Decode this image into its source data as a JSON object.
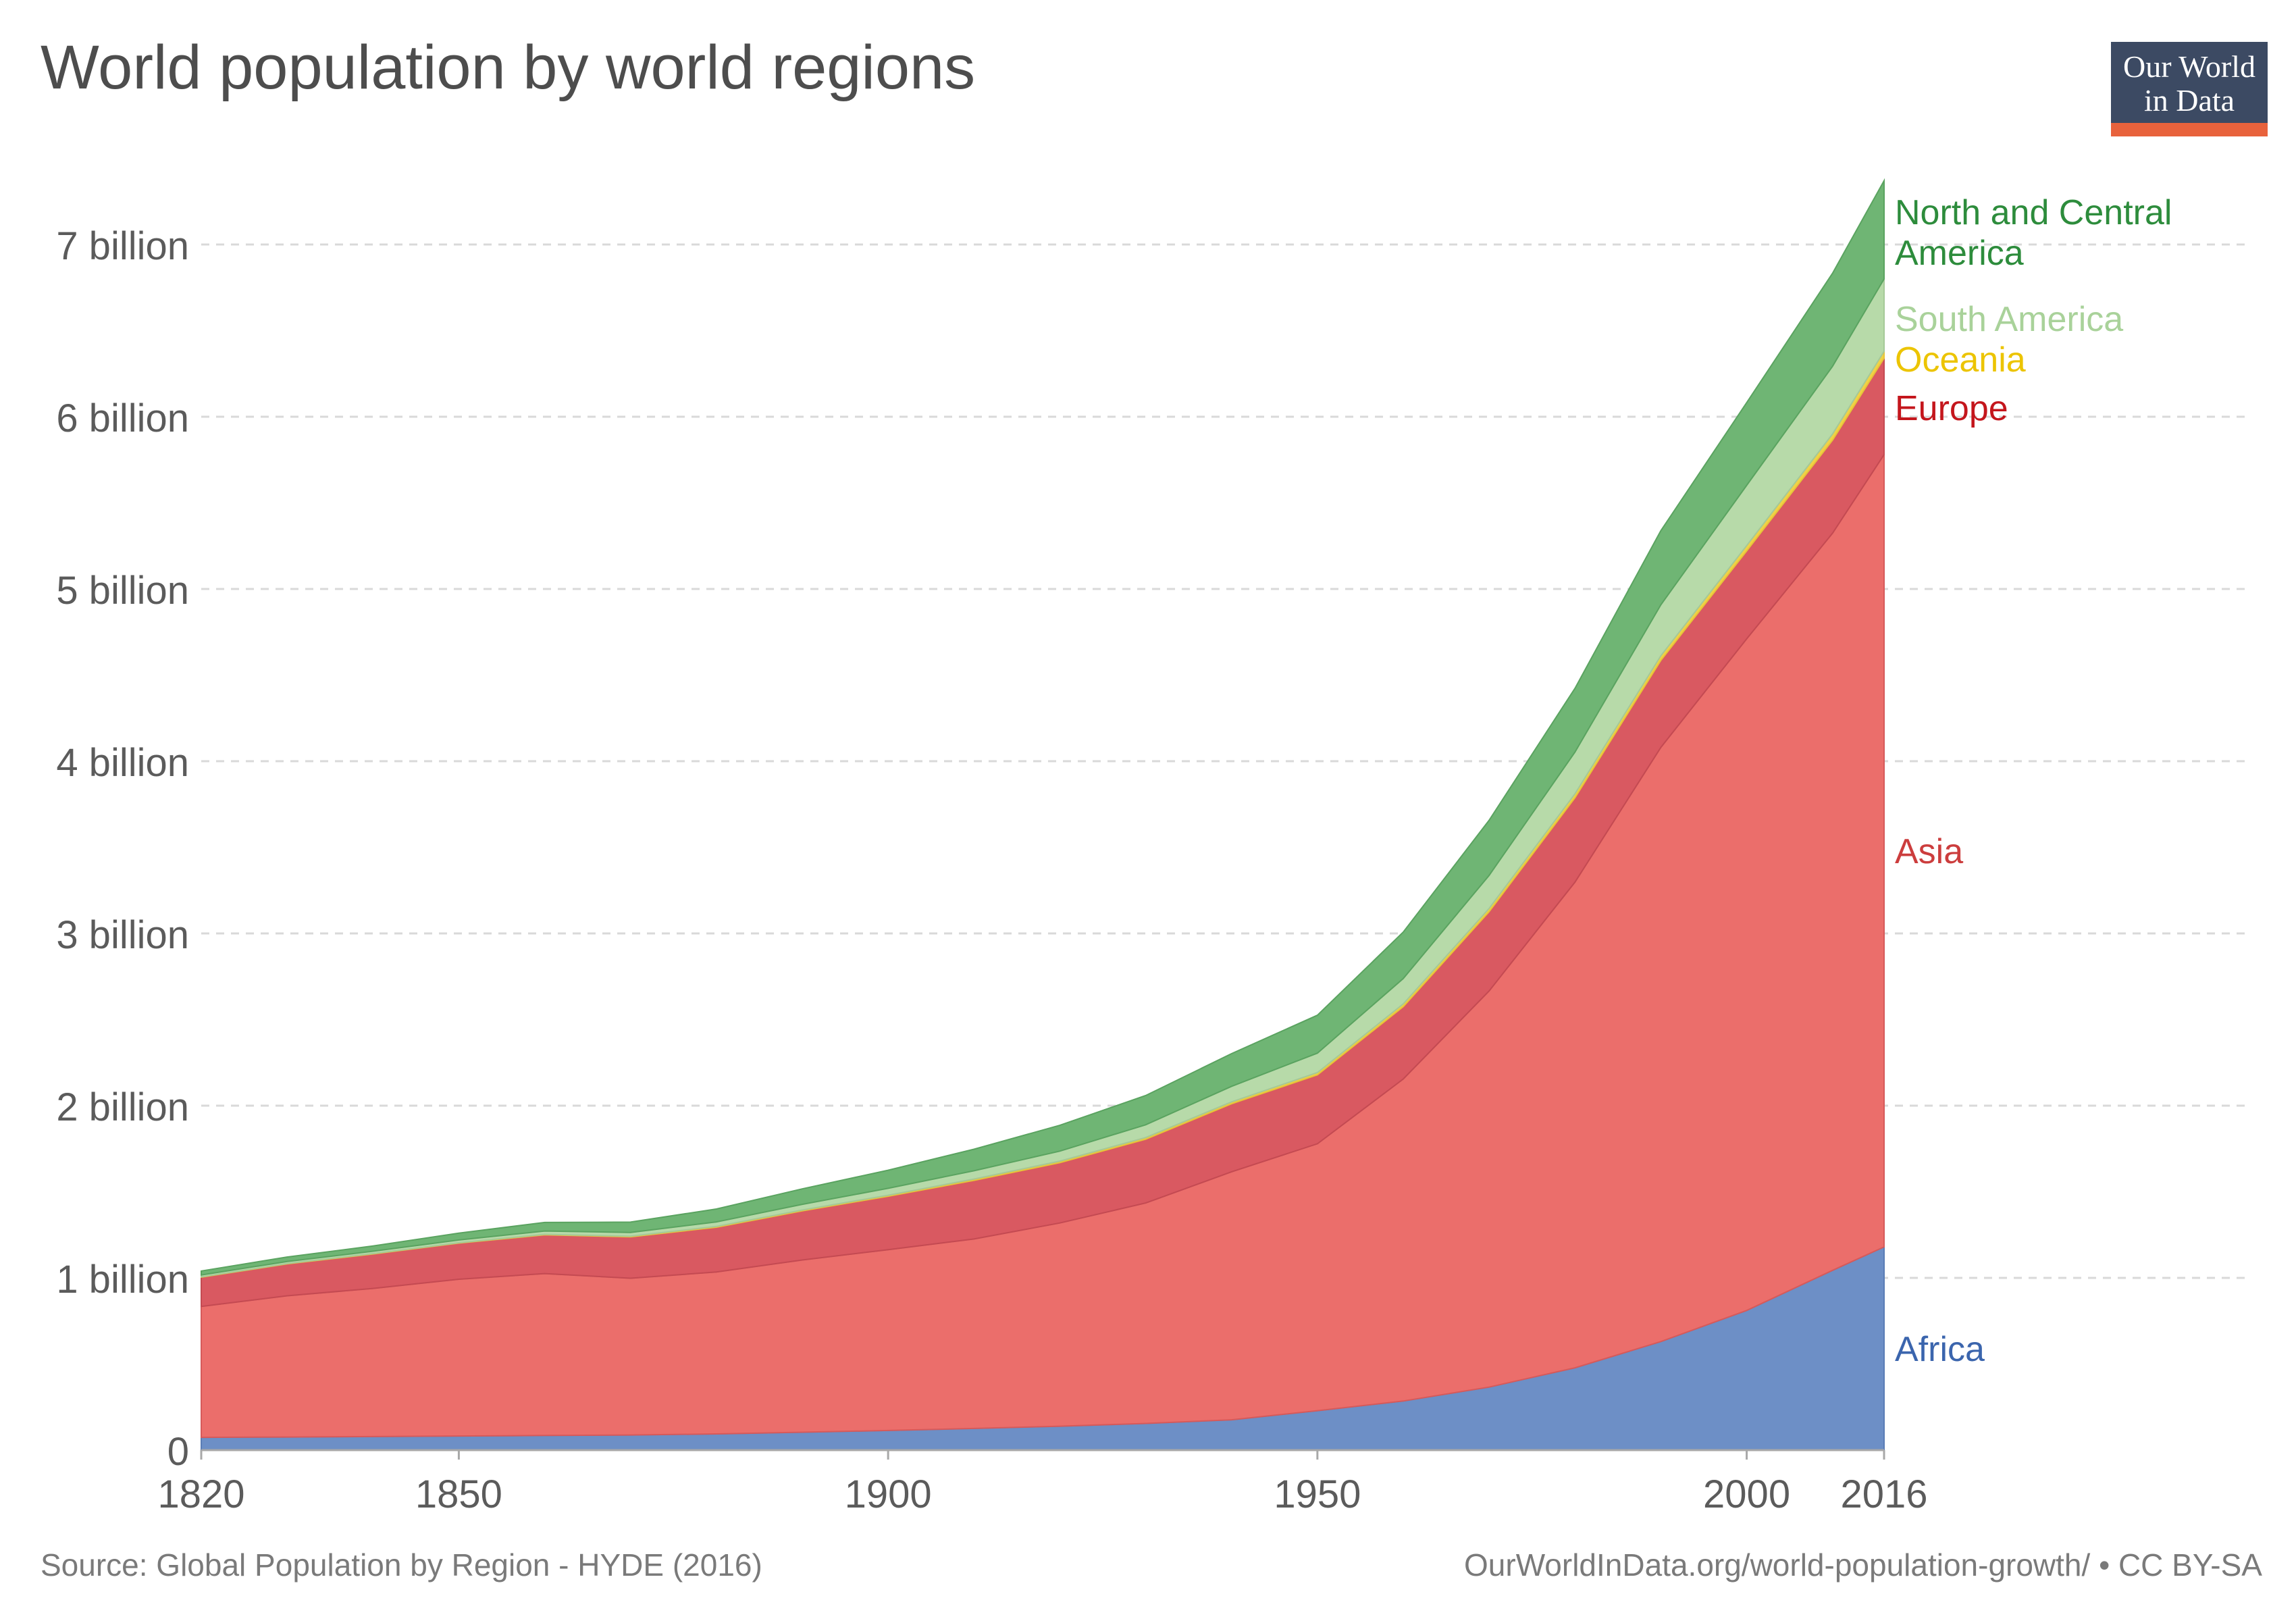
{
  "title": "World population by world regions",
  "logo": {
    "line1": "Our World",
    "line2": "in Data"
  },
  "footer": {
    "source": "Source: Global Population by Region - HYDE (2016)",
    "url": "OurWorldInData.org/world-population-growth/ • CC BY-SA"
  },
  "colors": {
    "background": "#ffffff",
    "africa": "#6d8fc6",
    "asia": "#eb6e6b",
    "europe": "#d95961",
    "oceania": "#f1d245",
    "south_america": "#b7daa9",
    "north_central_america": "#6fb574"
  },
  "chart_data": {
    "type": "area",
    "stacked": true,
    "x": [
      1820,
      1830,
      1840,
      1850,
      1860,
      1870,
      1880,
      1890,
      1900,
      1910,
      1920,
      1930,
      1940,
      1950,
      1960,
      1970,
      1980,
      1990,
      2000,
      2010,
      2016
    ],
    "series": [
      {
        "name": "Africa",
        "label_color": "#3b65ad",
        "fill": "#6d8fc6",
        "stroke": "#5a7cb5",
        "values": [
          0.074,
          0.076,
          0.079,
          0.082,
          0.085,
          0.088,
          0.094,
          0.104,
          0.114,
          0.126,
          0.139,
          0.155,
          0.176,
          0.229,
          0.285,
          0.366,
          0.478,
          0.63,
          0.811,
          1.044,
          1.18
        ]
      },
      {
        "name": "Asia",
        "label_color": "#cc3d3d",
        "fill": "#eb6e6b",
        "stroke": "#d65a5a",
        "values": [
          0.76,
          0.82,
          0.86,
          0.91,
          0.94,
          0.91,
          0.94,
          1.0,
          1.05,
          1.1,
          1.18,
          1.28,
          1.44,
          1.55,
          1.87,
          2.3,
          2.82,
          3.45,
          3.9,
          4.28,
          4.6
        ]
      },
      {
        "name": "Europe",
        "label_color": "#c4161c",
        "fill": "#d95961",
        "stroke": "#c44a52",
        "values": [
          0.17,
          0.185,
          0.2,
          0.21,
          0.225,
          0.24,
          0.26,
          0.285,
          0.31,
          0.34,
          0.35,
          0.37,
          0.395,
          0.4,
          0.42,
          0.46,
          0.49,
          0.505,
          0.51,
          0.54,
          0.56
        ]
      },
      {
        "name": "Oceania",
        "label_color": "#ecc400",
        "fill": "#f1d245",
        "stroke": "#e6c43a",
        "values": [
          0.002,
          0.002,
          0.002,
          0.002,
          0.003,
          0.004,
          0.005,
          0.005,
          0.006,
          0.008,
          0.009,
          0.01,
          0.011,
          0.013,
          0.016,
          0.019,
          0.023,
          0.027,
          0.031,
          0.036,
          0.04
        ]
      },
      {
        "name": "South America",
        "label_color": "#a9d29a",
        "fill": "#b7daa9",
        "stroke": "#a5c998",
        "values": [
          0.011,
          0.012,
          0.014,
          0.016,
          0.019,
          0.022,
          0.026,
          0.033,
          0.04,
          0.048,
          0.058,
          0.074,
          0.09,
          0.113,
          0.147,
          0.192,
          0.242,
          0.296,
          0.35,
          0.393,
          0.42
        ]
      },
      {
        "name": "North and Central America",
        "label_color": "#2d8c3c",
        "fill": "#6fb574",
        "stroke": "#5aa360",
        "values": [
          0.023,
          0.026,
          0.03,
          0.04,
          0.05,
          0.06,
          0.075,
          0.09,
          0.105,
          0.125,
          0.15,
          0.17,
          0.19,
          0.22,
          0.27,
          0.32,
          0.37,
          0.43,
          0.48,
          0.54,
          0.57
        ]
      }
    ],
    "xticks": [
      1820,
      1850,
      1900,
      1950,
      2000,
      2016
    ],
    "xlim": [
      1820,
      2016
    ],
    "ylim": [
      0,
      7.3
    ],
    "yticks": [
      {
        "value": 0,
        "label": "0"
      },
      {
        "value": 1,
        "label": "1 billion"
      },
      {
        "value": 2,
        "label": "2 billion"
      },
      {
        "value": 3,
        "label": "3 billion"
      },
      {
        "value": 4,
        "label": "4 billion"
      },
      {
        "value": 5,
        "label": "5 billion"
      },
      {
        "value": 6,
        "label": "6 billion"
      },
      {
        "value": 7,
        "label": "7 billion"
      }
    ],
    "grid": true,
    "legend": "right, labels at end of each area",
    "end_labels": [
      {
        "series": "North and Central America",
        "lines": [
          "North and Central",
          "America"
        ],
        "color": "#2d8c3c"
      },
      {
        "series": "South America",
        "lines": [
          "South America"
        ],
        "color": "#a9d29a"
      },
      {
        "series": "Oceania",
        "lines": [
          "Oceania"
        ],
        "color": "#ecc400"
      },
      {
        "series": "Europe",
        "lines": [
          "Europe"
        ],
        "color": "#c4161c"
      },
      {
        "series": "Asia",
        "lines": [
          "Asia"
        ],
        "color": "#cc3d3d"
      },
      {
        "series": "Africa",
        "lines": [
          "Africa"
        ],
        "color": "#3b65ad"
      }
    ]
  }
}
